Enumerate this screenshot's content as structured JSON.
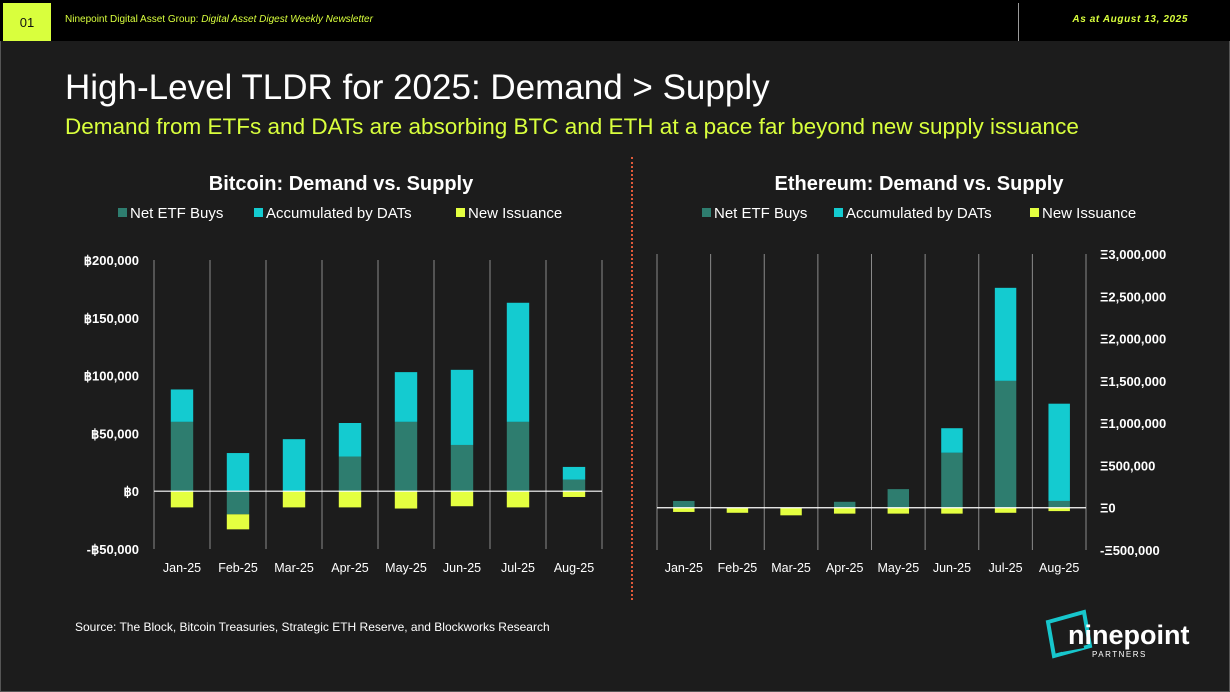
{
  "header": {
    "page_number": "01",
    "newsletter_org": "Ninepoint Digital Asset Group: ",
    "newsletter_name": "Digital Asset Digest Weekly Newsletter",
    "as_at": "As at August 13, 2025"
  },
  "title": "High-Level TLDR for 2025: Demand > Supply",
  "subtitle": "Demand from ETFs and DATs are absorbing BTC and ETH at a pace far beyond new supply issuance",
  "source": "Source: The Block, Bitcoin Treasuries, Strategic ETH Reserve, and Blockworks Research",
  "logo": {
    "word": "ninepoint",
    "sub": "PARTNERS"
  },
  "colors": {
    "net_etf": "#2e7d6f",
    "dats": "#14cbd0",
    "issuance": "#e4ff40",
    "accent": "#d9ff3d",
    "divider": "#e05a3a"
  },
  "chart_data": [
    {
      "type": "bar",
      "stacked": true,
      "title": "Bitcoin: Demand vs. Supply",
      "axis_side": "left",
      "unit_prefix": "฿",
      "categories": [
        "Jan-25",
        "Feb-25",
        "Mar-25",
        "Apr-25",
        "May-25",
        "Jun-25",
        "Jul-25",
        "Aug-25"
      ],
      "ylim": [
        -50000,
        200000
      ],
      "yticks": [
        200000,
        150000,
        100000,
        50000,
        0,
        -50000
      ],
      "ytick_labels": [
        "฿200,000",
        "฿150,000",
        "฿100,000",
        "฿50,000",
        "฿0",
        "-฿50,000"
      ],
      "legend": "top",
      "grid": "vertical",
      "series": [
        {
          "name": "Net ETF Buys",
          "color": "#2e7d6f",
          "values": [
            60000,
            -20000,
            0,
            30000,
            60000,
            40000,
            60000,
            10000
          ]
        },
        {
          "name": "Accumulated by DATs",
          "color": "#14cbd0",
          "values": [
            28000,
            33000,
            45000,
            29000,
            43000,
            65000,
            103000,
            11000
          ]
        },
        {
          "name": "New Issuance",
          "color": "#e4ff40",
          "values": [
            -14000,
            -13000,
            -14000,
            -14000,
            -15000,
            -13000,
            -14000,
            -5000
          ]
        }
      ]
    },
    {
      "type": "bar",
      "stacked": true,
      "title": "Ethereum: Demand vs. Supply",
      "axis_side": "right",
      "unit_prefix": "Ξ",
      "categories": [
        "Jan-25",
        "Feb-25",
        "Mar-25",
        "Apr-25",
        "May-25",
        "Jun-25",
        "Jul-25",
        "Aug-25"
      ],
      "ylim": [
        -500000,
        3000000
      ],
      "yticks": [
        3000000,
        2500000,
        2000000,
        1500000,
        1000000,
        500000,
        0,
        -500000
      ],
      "ytick_labels": [
        "Ξ3,000,000",
        "Ξ2,500,000",
        "Ξ2,000,000",
        "Ξ1,500,000",
        "Ξ1,000,000",
        "Ξ500,000",
        "Ξ0",
        "-Ξ500,000"
      ],
      "legend": "top",
      "grid": "vertical",
      "series": [
        {
          "name": "Net ETF Buys",
          "color": "#2e7d6f",
          "values": [
            80000,
            0,
            0,
            70000,
            220000,
            650000,
            1500000,
            80000
          ]
        },
        {
          "name": "Accumulated by DATs",
          "color": "#14cbd0",
          "values": [
            0,
            0,
            0,
            0,
            0,
            290000,
            1100000,
            1150000
          ]
        },
        {
          "name": "New Issuance",
          "color": "#e4ff40",
          "values": [
            -50000,
            -60000,
            -90000,
            -70000,
            -70000,
            -70000,
            -60000,
            -40000
          ]
        }
      ]
    }
  ]
}
